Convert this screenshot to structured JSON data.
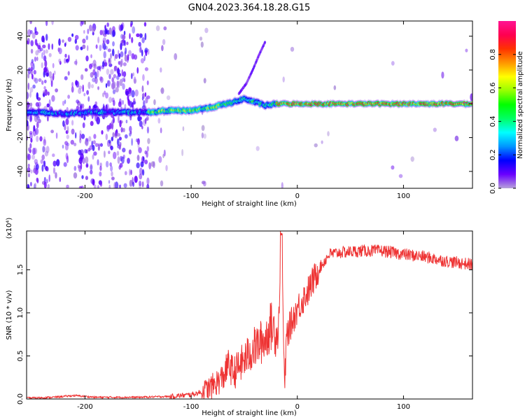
{
  "figure": {
    "title": "GN04.2023.364.18.28.G15"
  },
  "chart_data": [
    {
      "type": "heatmap",
      "xlabel": "Height of straight line (km)",
      "ylabel": "Frequency (Hz)",
      "xlim": [
        -255,
        165
      ],
      "ylim": [
        -50,
        49
      ],
      "xticks": [
        -200,
        -100,
        0,
        100
      ],
      "yticks": [
        -40,
        -20,
        0,
        20,
        40
      ],
      "colorbar": {
        "label": "Normalized spectral amplitude",
        "range": [
          0,
          1
        ],
        "ticks": [
          "0.0",
          "0.2",
          "0.4",
          "0.6",
          "0.8"
        ],
        "tick_values": [
          0,
          0.2,
          0.4,
          0.6,
          0.8
        ],
        "colormap": [
          "#b7a2d9",
          "#6a00ff",
          "#0000ff",
          "#0096ff",
          "#00ffff",
          "#00ff64",
          "#00ff00",
          "#96ff00",
          "#ffff00",
          "#ff9600",
          "#ff3200",
          "#ff0050",
          "#ff1493"
        ]
      },
      "ridge": {
        "description": "dominant frequency trace",
        "x": [
          -240,
          -220,
          -200,
          -180,
          -160,
          -140,
          -120,
          -100,
          -80,
          -60,
          -50,
          -40,
          -30,
          -20,
          0,
          50,
          100,
          165
        ],
        "y": [
          -5,
          -6,
          -5,
          -5,
          -5,
          -5,
          -4,
          -4,
          -2,
          1,
          3,
          1,
          -1,
          0,
          0,
          0,
          0,
          0
        ]
      },
      "rising_arc": {
        "x": [
          -55,
          -48,
          -42,
          -36,
          -30
        ],
        "y": [
          6,
          12,
          20,
          29,
          37
        ]
      }
    },
    {
      "type": "line",
      "xlabel": "Height of straight line (km)",
      "ylabel": "SNR (10 * v/v)",
      "yscale_label": "(x10⁴)",
      "xlim": [
        -255,
        165
      ],
      "ylim": [
        0,
        1.95
      ],
      "xticks": [
        -200,
        -100,
        0,
        100
      ],
      "yticks": [
        0.0,
        0.5,
        1.0,
        1.5
      ],
      "ytick_labels": [
        "0.0",
        "0.5",
        "1.0",
        "1.5"
      ],
      "series": [
        {
          "color": "#ee3333",
          "x": [
            -255,
            -230,
            -210,
            -190,
            -150,
            -120,
            -100,
            -90,
            -80,
            -70,
            -65,
            -60,
            -50,
            -40,
            -30,
            -25,
            -18,
            -15,
            -12,
            -10,
            -5,
            0,
            10,
            20,
            30,
            40,
            60,
            80,
            100,
            120,
            140,
            165
          ],
          "y": [
            0.01,
            0.02,
            0.04,
            0.02,
            0.02,
            0.03,
            0.05,
            0.08,
            0.15,
            0.25,
            0.4,
            0.3,
            0.45,
            0.6,
            0.7,
            0.85,
            0.75,
            1.95,
            0.1,
            0.75,
            0.9,
            1.05,
            1.25,
            1.5,
            1.68,
            1.7,
            1.72,
            1.72,
            1.68,
            1.65,
            1.6,
            1.56
          ]
        }
      ]
    }
  ]
}
